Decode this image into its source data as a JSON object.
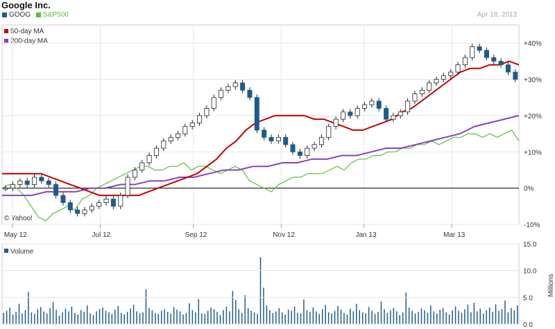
{
  "title": "Google Inc.",
  "as_of_date": "Apr 18, 2013",
  "watermark": "© Yahoo!",
  "colors": {
    "goog_up": "#ffffff",
    "goog_down": "#1f5a8c",
    "sp500": "#58c03a",
    "ma50": "#c00000",
    "ma200": "#8a3fc4",
    "grid": "#e5e5e5",
    "volume": "#1f5a8c"
  },
  "legend_top": [
    {
      "label": "GOOG",
      "color": "#1f5a8c"
    },
    {
      "label": "S&P500",
      "color": "#58c03a"
    }
  ],
  "legend_ma": [
    {
      "label": "50-day MA",
      "color": "#c00000"
    },
    {
      "label": "200-day MA",
      "color": "#8a3fc4"
    }
  ],
  "chart_data": [
    {
      "type": "line",
      "title": "Google Inc.",
      "y_unit": "%",
      "ylim": [
        -10,
        45
      ],
      "y_ticks": [
        "+40%",
        "+30%",
        "+20%",
        "+10%",
        "0%",
        "-10%"
      ],
      "y_tick_values": [
        40,
        30,
        20,
        10,
        0,
        -10
      ],
      "x_ticks": [
        "May 12",
        "Jul 12",
        "Sep 12",
        "Nov 12",
        "Jan 13",
        "Mar 13"
      ],
      "x_tick_positions": [
        0.02,
        0.19,
        0.37,
        0.54,
        0.7,
        0.87
      ],
      "series": [
        {
          "name": "GOOG",
          "values": [
            0,
            1,
            2,
            1,
            3,
            2,
            1,
            -2,
            -4,
            -6,
            -7,
            -6,
            -5,
            -4,
            -3,
            -5,
            -2,
            3,
            5,
            7,
            9,
            11,
            13,
            14,
            15,
            17,
            18,
            20,
            22,
            25,
            27,
            28,
            29,
            27,
            25,
            16,
            14,
            13,
            14,
            12,
            10,
            9,
            11,
            12,
            14,
            17,
            19,
            21,
            20,
            22,
            23,
            24,
            22,
            19,
            20,
            21,
            24,
            26,
            27,
            29,
            30,
            31,
            32,
            34,
            36,
            39,
            38,
            36,
            35,
            34,
            32,
            30
          ]
        },
        {
          "name": "S&P500",
          "values": [
            0,
            1,
            0,
            -2,
            -5,
            -8,
            -9,
            -7,
            -6,
            -5,
            -6,
            -3,
            -2,
            0,
            1,
            2,
            3,
            4,
            5,
            6,
            6,
            5,
            5,
            6,
            6,
            7,
            5,
            6,
            6,
            5,
            4,
            5,
            6,
            5,
            2,
            1,
            0,
            -1,
            1,
            2,
            3,
            3,
            4,
            4,
            4,
            5,
            6,
            5,
            7,
            8,
            8,
            9,
            9,
            10,
            10,
            11,
            11,
            12,
            12,
            13,
            12,
            13,
            14,
            14,
            15,
            15,
            14,
            15,
            14,
            15,
            16,
            13
          ]
        },
        {
          "name": "50-day MA",
          "values": [
            4,
            4,
            4,
            4,
            4,
            3,
            2,
            1,
            0,
            -1,
            -2,
            -2,
            -2,
            -2,
            -2,
            -1,
            0,
            1,
            2,
            3,
            4,
            6,
            8,
            11,
            13,
            16,
            18,
            19,
            20,
            20,
            20,
            20,
            19,
            19,
            18,
            17,
            16,
            16,
            17,
            18,
            19,
            21,
            22,
            24,
            26,
            28,
            30,
            32,
            33,
            33,
            34,
            34,
            35,
            34
          ]
        },
        {
          "name": "200-day MA",
          "values": [
            -2,
            -2,
            -2,
            -1,
            -1,
            -1,
            0,
            0,
            1,
            1,
            2,
            2,
            3,
            3,
            4,
            5,
            5,
            6,
            6,
            7,
            7,
            8,
            8,
            9,
            9,
            10,
            11,
            11,
            12,
            13,
            14,
            15,
            17,
            18,
            19,
            20
          ]
        }
      ]
    },
    {
      "type": "bar",
      "title": "Volume",
      "ylabel": "Millions",
      "ylim": [
        0,
        15
      ],
      "y_ticks": [
        "15.0",
        "10.0",
        "5.0",
        "0.0"
      ],
      "y_tick_values": [
        15,
        10,
        5,
        0
      ],
      "values": [
        2.1,
        2.5,
        3.1,
        1.8,
        2.3,
        3.8,
        2.0,
        2.6,
        6.0,
        2.2,
        1.9,
        2.8,
        3.2,
        2.4,
        2.0,
        3.0,
        4.1,
        2.7,
        1.6,
        2.2,
        2.9,
        2.4,
        3.3,
        2.1,
        1.8,
        2.6,
        2.3,
        3.5,
        2.0,
        1.7,
        2.4,
        2.8,
        3.1,
        2.5,
        2.2,
        1.9,
        2.7,
        3.4,
        2.1,
        1.8,
        2.3,
        2.9,
        3.6,
        2.4,
        2.0,
        2.2,
        6.5,
        3.0,
        2.6,
        2.1,
        1.9,
        2.5,
        2.8,
        2.3,
        2.0,
        3.2,
        2.7,
        2.4,
        1.8,
        2.1,
        3.9,
        2.6,
        2.2,
        4.7,
        2.0,
        1.9,
        2.5,
        3.1,
        2.8,
        2.3,
        1.7,
        2.6,
        3.3,
        2.4,
        6.2,
        4.5,
        2.8,
        2.1,
        5.4,
        3.0,
        2.5,
        2.2,
        1.9,
        12.5,
        6.8,
        3.5,
        2.6,
        2.1,
        2.4,
        3.0,
        2.2,
        1.8,
        2.7,
        2.5,
        3.3,
        2.1,
        2.0,
        4.6,
        2.6,
        2.3,
        3.1,
        2.4,
        1.9,
        2.8,
        3.6,
        2.2,
        2.0,
        2.5,
        3.4,
        2.7,
        2.1,
        1.8,
        2.9,
        2.4,
        3.8,
        2.6,
        2.2,
        2.0,
        3.2,
        2.5,
        1.9,
        2.3,
        4.2,
        2.8,
        2.1,
        2.6,
        3.0,
        2.4,
        1.7,
        2.2,
        5.9,
        3.1,
        2.5,
        2.0,
        2.3,
        2.9,
        2.6,
        2.1,
        3.5,
        2.4,
        2.0,
        2.7,
        3.0,
        2.2,
        1.8,
        2.6,
        3.3,
        2.5,
        2.1,
        2.8,
        3.6,
        2.2,
        4.0,
        2.4,
        2.9,
        2.0,
        2.6,
        3.1,
        2.3,
        3.7,
        2.5,
        2.8,
        4.4,
        2.2,
        3.0,
        2.6,
        3.5
      ]
    }
  ]
}
